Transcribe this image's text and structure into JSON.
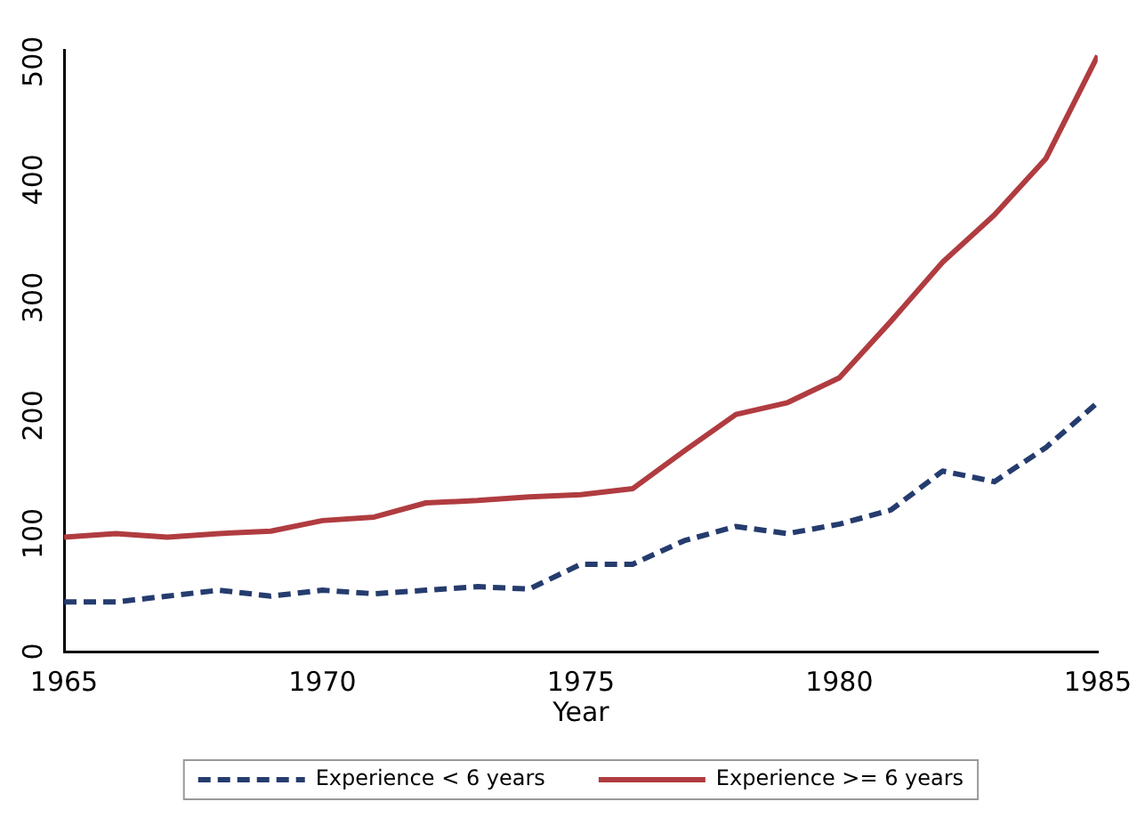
{
  "chart_data": {
    "type": "line",
    "xlabel": "Year",
    "x": [
      1965,
      1966,
      1967,
      1968,
      1969,
      1970,
      1971,
      1972,
      1973,
      1974,
      1975,
      1976,
      1977,
      1978,
      1979,
      1980,
      1981,
      1982,
      1983,
      1984,
      1985
    ],
    "series": [
      {
        "name": "Experience < 6 years",
        "color": "#253c6e",
        "line_style": "dashed",
        "values": [
          42,
          42,
          47,
          52,
          47,
          52,
          49,
          52,
          55,
          53,
          74,
          74,
          94,
          106,
          100,
          108,
          120,
          153,
          144,
          173,
          211
        ]
      },
      {
        "name": "Experience >= 6 years",
        "color": "#b03c40",
        "line_style": "solid",
        "values": [
          97,
          100,
          97,
          100,
          102,
          111,
          114,
          126,
          128,
          131,
          133,
          138,
          170,
          201,
          211,
          232,
          280,
          330,
          370,
          418,
          505
        ]
      }
    ],
    "xlim": [
      1965,
      1985
    ],
    "xticks": [
      {
        "value": 1965,
        "label": "1965"
      },
      {
        "value": 1970,
        "label": "1970"
      },
      {
        "value": 1975,
        "label": "1975"
      },
      {
        "value": 1980,
        "label": "1980"
      },
      {
        "value": 1985,
        "label": "1985"
      }
    ],
    "ylim": [
      0,
      510
    ],
    "yticks": [
      0,
      100,
      200,
      300,
      400,
      500
    ],
    "grid": false,
    "legend": "bottom",
    "marker": "none"
  }
}
